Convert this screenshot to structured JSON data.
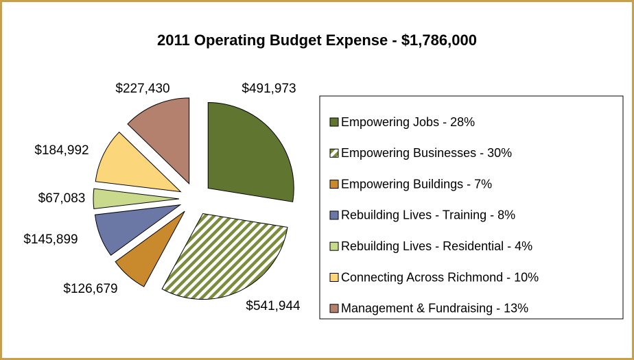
{
  "chart_data": {
    "type": "pie",
    "title": "2011 Operating Budget Expense - $1,786,000",
    "categories": [
      "Empowering Jobs - 28%",
      "Empowering Businesses - 30%",
      "Empowering Buildings - 7%",
      "Rebuilding Lives - Training - 8%",
      "Rebuilding Lives - Residential - 4%",
      "Connecting Across Richmond - 10%",
      "Management & Fundraising - 13%"
    ],
    "values": [
      491973,
      541944,
      126679,
      145899,
      67083,
      184992,
      227430
    ],
    "value_labels": [
      "$491,973",
      "$541,944",
      "$126,679",
      "$145,899",
      "$67,083",
      "$184,992",
      "$227,430"
    ],
    "colors": [
      "#5f7530",
      "#7d8c3c",
      "#c98a2e",
      "#6b78a6",
      "#c9da8c",
      "#fcd67a",
      "#b5816f"
    ],
    "hatched": [
      false,
      true,
      false,
      false,
      false,
      false,
      false
    ],
    "legend": "right"
  }
}
